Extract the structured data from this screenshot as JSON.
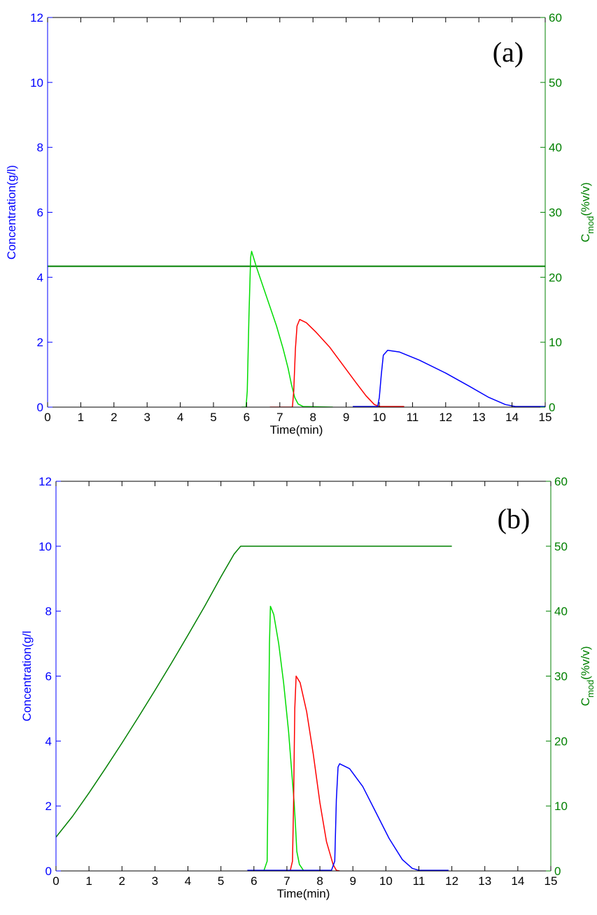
{
  "colors": {
    "left_axis": "#0000ff",
    "right_axis": "#008000",
    "x_axis": "#000000"
  },
  "chart_data": [
    {
      "type": "line",
      "panel_label": "(a)",
      "xlabel": "Time(min)",
      "ylabel": "Concentration(g/l)",
      "y2label": {
        "base": "C",
        "sub": "mod",
        "rest": "(%v/v)"
      },
      "xlim": [
        0,
        15
      ],
      "ylim": [
        0,
        12
      ],
      "y2lim": [
        0,
        60
      ],
      "xticks": [
        "0",
        "1",
        "2",
        "3",
        "4",
        "5",
        "6",
        "7",
        "8",
        "9",
        "10",
        "11",
        "12",
        "13",
        "14",
        "15"
      ],
      "yticks": [
        "0",
        "2",
        "4",
        "6",
        "8",
        "10",
        "12"
      ],
      "y2ticks": [
        "0",
        "10",
        "20",
        "30",
        "40",
        "50",
        "60"
      ],
      "grid": false,
      "series": [
        {
          "color": "#008000",
          "axis": "right",
          "width": 2,
          "points": [
            [
              0,
              21.7
            ],
            [
              15,
              21.7
            ]
          ]
        },
        {
          "color": "#00dd00",
          "axis": "left",
          "width": 1.5,
          "points": [
            [
              5.85,
              0
            ],
            [
              5.98,
              0
            ],
            [
              6.02,
              0.5
            ],
            [
              6.07,
              2.8
            ],
            [
              6.12,
              4.6
            ],
            [
              6.15,
              4.8
            ],
            [
              6.3,
              4.3
            ],
            [
              6.5,
              3.7
            ],
            [
              6.7,
              3.1
            ],
            [
              6.9,
              2.5
            ],
            [
              7.1,
              1.8
            ],
            [
              7.25,
              1.2
            ],
            [
              7.35,
              0.7
            ],
            [
              7.45,
              0.3
            ],
            [
              7.55,
              0.1
            ],
            [
              7.7,
              0.02
            ],
            [
              8.6,
              0
            ]
          ]
        },
        {
          "color": "#ff0000",
          "axis": "left",
          "width": 1.5,
          "points": [
            [
              6.7,
              0
            ],
            [
              7.38,
              0
            ],
            [
              7.42,
              0.5
            ],
            [
              7.47,
              1.8
            ],
            [
              7.52,
              2.5
            ],
            [
              7.6,
              2.7
            ],
            [
              7.8,
              2.6
            ],
            [
              8.1,
              2.3
            ],
            [
              8.5,
              1.85
            ],
            [
              8.9,
              1.3
            ],
            [
              9.3,
              0.75
            ],
            [
              9.6,
              0.35
            ],
            [
              9.85,
              0.08
            ],
            [
              10.0,
              0.02
            ],
            [
              10.75,
              0.02
            ]
          ]
        },
        {
          "color": "#0000ff",
          "axis": "left",
          "width": 1.5,
          "points": [
            [
              9.2,
              0.02
            ],
            [
              9.95,
              0.02
            ],
            [
              10.0,
              0.3
            ],
            [
              10.06,
              1.0
            ],
            [
              10.12,
              1.6
            ],
            [
              10.25,
              1.75
            ],
            [
              10.6,
              1.7
            ],
            [
              11.2,
              1.45
            ],
            [
              12.0,
              1.05
            ],
            [
              12.7,
              0.65
            ],
            [
              13.3,
              0.3
            ],
            [
              13.8,
              0.08
            ],
            [
              14.1,
              0.02
            ],
            [
              15,
              0.02
            ]
          ]
        }
      ]
    },
    {
      "type": "line",
      "panel_label": "(b)",
      "xlabel": "Time(min)",
      "ylabel": "Concentration(g/l",
      "y2label": {
        "base": "C",
        "sub": "mod",
        "rest": "(%v/v)"
      },
      "xlim": [
        0,
        15
      ],
      "ylim": [
        0,
        12
      ],
      "y2lim": [
        0,
        60
      ],
      "xticks": [
        "0",
        "1",
        "2",
        "3",
        "4",
        "5",
        "6",
        "7",
        "8",
        "9",
        "10",
        "11",
        "12",
        "13",
        "14",
        "15"
      ],
      "yticks": [
        "0",
        "2",
        "4",
        "6",
        "8",
        "10",
        "12"
      ],
      "y2ticks": [
        "0",
        "10",
        "20",
        "30",
        "40",
        "50",
        "60"
      ],
      "grid": false,
      "series": [
        {
          "color": "#008000",
          "axis": "right",
          "width": 1.5,
          "points": [
            [
              0,
              5.2
            ],
            [
              0.5,
              8.4
            ],
            [
              1,
              12.0
            ],
            [
              1.5,
              15.8
            ],
            [
              2,
              19.7
            ],
            [
              2.5,
              23.7
            ],
            [
              3,
              27.8
            ],
            [
              3.5,
              32.0
            ],
            [
              4,
              36.3
            ],
            [
              4.5,
              40.7
            ],
            [
              5,
              45.3
            ],
            [
              5.4,
              48.8
            ],
            [
              5.6,
              50
            ],
            [
              12,
              50
            ]
          ]
        },
        {
          "color": "#00dd00",
          "axis": "left",
          "width": 1.5,
          "points": [
            [
              6.3,
              0
            ],
            [
              6.4,
              0.3
            ],
            [
              6.43,
              3.0
            ],
            [
              6.47,
              7.0
            ],
            [
              6.5,
              8.15
            ],
            [
              6.6,
              7.9
            ],
            [
              6.75,
              7.0
            ],
            [
              6.9,
              5.8
            ],
            [
              7.05,
              4.3
            ],
            [
              7.15,
              3.0
            ],
            [
              7.22,
              2.1
            ],
            [
              7.26,
              1.4
            ],
            [
              7.3,
              0.6
            ],
            [
              7.38,
              0.2
            ],
            [
              7.5,
              0.02
            ],
            [
              7.6,
              0
            ]
          ]
        },
        {
          "color": "#ff0000",
          "axis": "left",
          "width": 1.5,
          "points": [
            [
              7.1,
              0
            ],
            [
              7.17,
              0.3
            ],
            [
              7.2,
              2.0
            ],
            [
              7.24,
              5.0
            ],
            [
              7.28,
              6.0
            ],
            [
              7.4,
              5.8
            ],
            [
              7.6,
              4.9
            ],
            [
              7.8,
              3.6
            ],
            [
              8.0,
              2.1
            ],
            [
              8.2,
              0.9
            ],
            [
              8.4,
              0.2
            ],
            [
              8.5,
              0.02
            ],
            [
              8.6,
              0
            ]
          ]
        },
        {
          "color": "#0000ff",
          "axis": "left",
          "width": 1.5,
          "points": [
            [
              5.8,
              0.02
            ],
            [
              8.35,
              0.02
            ],
            [
              8.45,
              0.3
            ],
            [
              8.5,
              2.2
            ],
            [
              8.55,
              3.2
            ],
            [
              8.6,
              3.3
            ],
            [
              8.9,
              3.15
            ],
            [
              9.3,
              2.6
            ],
            [
              9.7,
              1.8
            ],
            [
              10.1,
              1.0
            ],
            [
              10.5,
              0.35
            ],
            [
              10.8,
              0.08
            ],
            [
              11.0,
              0.02
            ],
            [
              11.9,
              0.02
            ]
          ]
        }
      ]
    }
  ]
}
